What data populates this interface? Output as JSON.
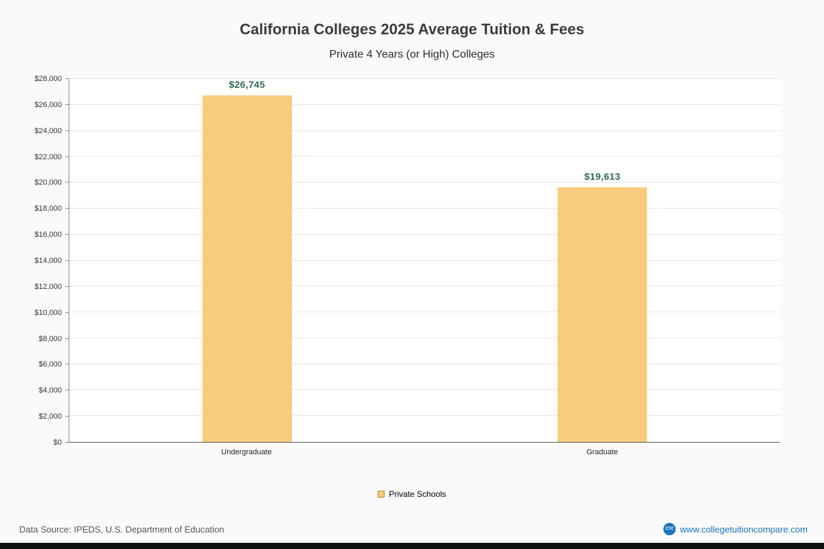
{
  "title": "California Colleges 2025 Average Tuition & Fees",
  "subtitle": "Private 4 Years (or High)  Colleges",
  "chart_data": {
    "type": "bar",
    "categories": [
      "Undergraduate",
      "Graduate"
    ],
    "values": [
      26745,
      19613
    ],
    "value_labels": [
      "$26,745",
      "$19,613"
    ],
    "series": [
      {
        "name": "Private Schools",
        "values": [
          26745,
          19613
        ]
      }
    ],
    "title": "California Colleges 2025 Average Tuition & Fees",
    "subtitle": "Private 4 Years (or High)  Colleges",
    "xlabel": "",
    "ylabel": "",
    "ylim": [
      0,
      28000
    ],
    "ytick_step": 2000,
    "ytick_labels": [
      "$0",
      "$2,000",
      "$4,000",
      "$6,000",
      "$8,000",
      "$10,000",
      "$12,000",
      "$14,000",
      "$16,000",
      "$18,000",
      "$20,000",
      "$22,000",
      "$24,000",
      "$26,000",
      "$28,000"
    ],
    "grid": true,
    "legend_position": "bottom",
    "bar_color": "#f7cd7b",
    "value_label_color": "#2e6b51"
  },
  "legend": {
    "items": [
      {
        "label": "Private Schools",
        "color": "#f7cd7b"
      }
    ]
  },
  "footer": {
    "source": "Data Source: IPEDS, U.S. Department of Education",
    "site": "www.collegetuitioncompare.com",
    "logo_text": "CTC"
  }
}
